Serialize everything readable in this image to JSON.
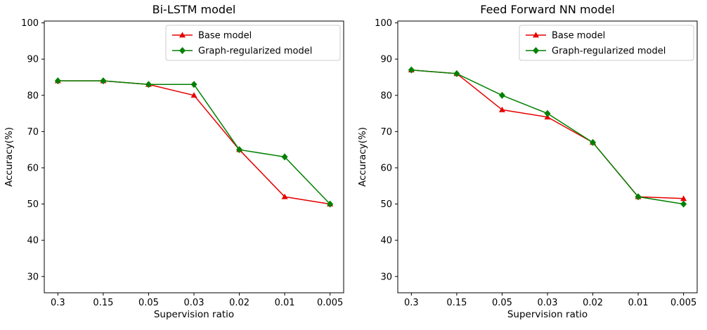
{
  "figure": {
    "background": "#ffffff",
    "frame_color": "#000000",
    "legend_border_color": "#cccccc"
  },
  "chart_data": [
    {
      "type": "line",
      "title": "Bi-LSTM model",
      "xlabel": "Supervision ratio",
      "ylabel": "Accuracy(%)",
      "categories": [
        "0.3",
        "0.15",
        "0.05",
        "0.03",
        "0.02",
        "0.01",
        "0.005"
      ],
      "yticks": [
        30,
        40,
        50,
        60,
        70,
        80,
        90,
        100
      ],
      "ylim": [
        25.5,
        100.5
      ],
      "grid": false,
      "legend_position": "upper right",
      "series": [
        {
          "name": "Base model",
          "color": "#e50000",
          "marker": "triangle",
          "values": [
            84,
            84,
            83,
            80,
            65,
            52,
            50
          ]
        },
        {
          "name": "Graph-regularized model",
          "color": "#008000",
          "marker": "diamond",
          "values": [
            84,
            84,
            83,
            83,
            65,
            63,
            50
          ]
        }
      ]
    },
    {
      "type": "line",
      "title": "Feed Forward NN model",
      "xlabel": "Supervision ratio",
      "ylabel": "Accuracy(%)",
      "categories": [
        "0.3",
        "0.15",
        "0.05",
        "0.03",
        "0.02",
        "0.01",
        "0.005"
      ],
      "yticks": [
        30,
        40,
        50,
        60,
        70,
        80,
        90,
        100
      ],
      "ylim": [
        25.5,
        100.5
      ],
      "grid": false,
      "legend_position": "upper right",
      "series": [
        {
          "name": "Base model",
          "color": "#e50000",
          "marker": "triangle",
          "values": [
            87,
            86,
            76,
            74,
            67,
            52,
            51.5
          ]
        },
        {
          "name": "Graph-regularized model",
          "color": "#008000",
          "marker": "diamond",
          "values": [
            87,
            86,
            80,
            75,
            67,
            52,
            50
          ]
        }
      ]
    }
  ]
}
